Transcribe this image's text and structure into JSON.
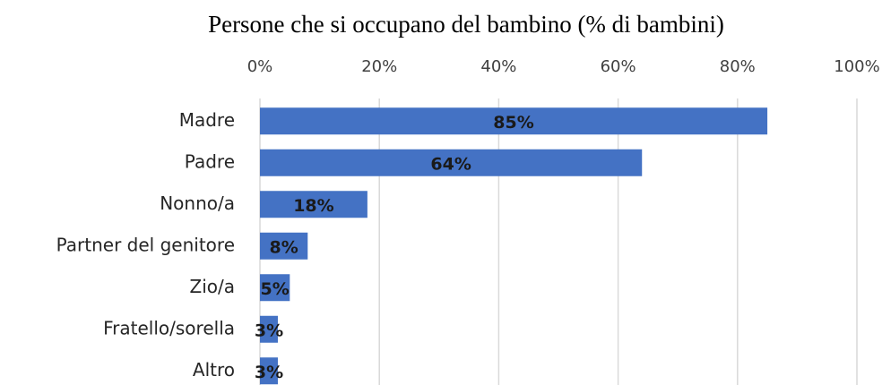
{
  "chart_data": {
    "type": "bar",
    "orientation": "horizontal",
    "title": "Persone che si occupano del bambino (% di bambini)",
    "categories": [
      "Madre",
      "Padre",
      "Nonno/a",
      "Partner del genitore",
      "Zio/a",
      "Fratello/sorella",
      "Altro"
    ],
    "values": [
      85,
      64,
      18,
      8,
      5,
      3,
      3
    ],
    "value_labels": [
      "85%",
      "64%",
      "18%",
      "8%",
      "5%",
      "3%",
      "3%"
    ],
    "color": "#4472c4",
    "xlim": [
      0,
      100
    ],
    "xticks": [
      {
        "value": 0,
        "label": "0%"
      },
      {
        "value": 20,
        "label": "20%"
      },
      {
        "value": 40,
        "label": "40%"
      },
      {
        "value": 60,
        "label": "60%"
      },
      {
        "value": 80,
        "label": "80%"
      },
      {
        "value": 100,
        "label": "100%"
      }
    ],
    "grid": true
  }
}
